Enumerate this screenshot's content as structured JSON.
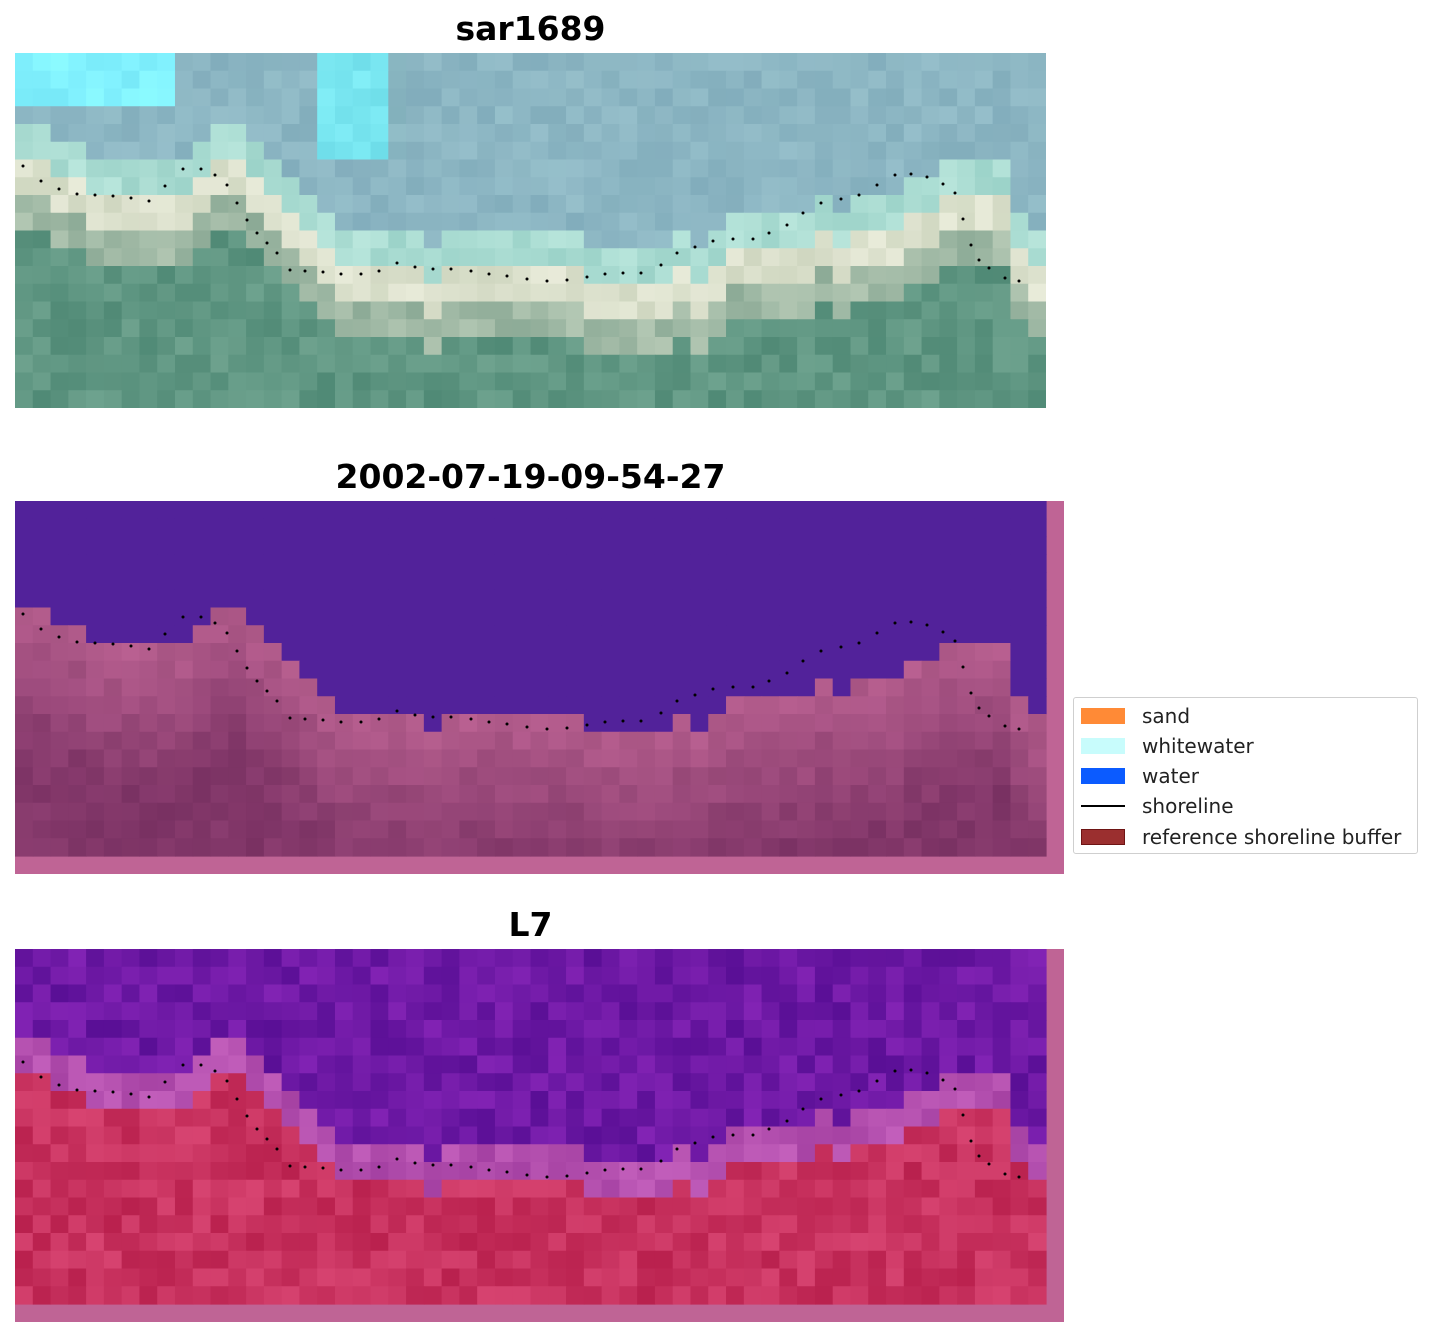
{
  "panels": [
    {
      "title": "sar1689",
      "kind": "rgb"
    },
    {
      "title": "2002-07-19-09-54-27",
      "kind": "classified"
    },
    {
      "title": "L7",
      "kind": "index"
    }
  ],
  "legend": {
    "items": [
      {
        "label": "sand",
        "type": "patch",
        "color": "#ff8a36"
      },
      {
        "label": "whitewater",
        "type": "patch",
        "color": "#c8fcfc"
      },
      {
        "label": "water",
        "type": "patch",
        "color": "#0b5bff"
      },
      {
        "label": "shoreline",
        "type": "line",
        "color": "#000000"
      },
      {
        "label": "reference shoreline buffer",
        "type": "patch",
        "color": "#9b2f2f",
        "edge": "#6e1414"
      }
    ]
  },
  "colors": {
    "water_class": "#52229a",
    "land_class": "#b05a8a",
    "buffer_overlay": "#bf6495",
    "shoreline_points": "#000000"
  }
}
